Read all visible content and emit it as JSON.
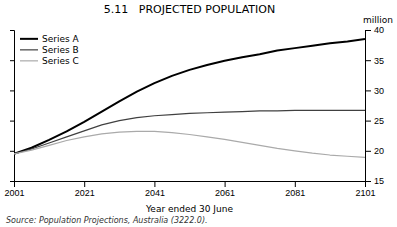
{
  "chart_data": {
    "type": "line",
    "title": "5.11   PROJECTED POPULATION",
    "xlabel": "Year ended 30 June",
    "ylabel": "million",
    "annotations": [
      "Source: Population Projections, Australia (3222.0)."
    ],
    "x": [
      2001,
      2006,
      2011,
      2016,
      2021,
      2026,
      2031,
      2036,
      2041,
      2046,
      2051,
      2056,
      2061,
      2066,
      2071,
      2076,
      2081,
      2086,
      2091,
      2096,
      2101
    ],
    "series": [
      {
        "name": "Series A",
        "color": "#000000",
        "values": [
          19.5,
          20.5,
          21.8,
          23.2,
          24.8,
          26.5,
          28.2,
          29.8,
          31.2,
          32.4,
          33.4,
          34.2,
          34.9,
          35.5,
          36.0,
          36.6,
          37.0,
          37.4,
          37.8,
          38.1,
          38.5
        ]
      },
      {
        "name": "Series B",
        "color": "#404040",
        "values": [
          19.5,
          20.3,
          21.3,
          22.3,
          23.3,
          24.3,
          25.0,
          25.5,
          25.8,
          26.0,
          26.2,
          26.3,
          26.4,
          26.5,
          26.6,
          26.6,
          26.7,
          26.7,
          26.7,
          26.7,
          26.7
        ]
      },
      {
        "name": "Series C",
        "color": "#aaaaaa",
        "values": [
          19.5,
          20.1,
          20.9,
          21.7,
          22.3,
          22.8,
          23.1,
          23.2,
          23.2,
          23.0,
          22.7,
          22.3,
          21.9,
          21.4,
          20.9,
          20.4,
          20.0,
          19.6,
          19.3,
          19.1,
          18.9
        ]
      }
    ],
    "xlim": [
      2001,
      2101
    ],
    "ylim": [
      15,
      40
    ],
    "xticks": [
      2001,
      2021,
      2041,
      2061,
      2081,
      2101
    ],
    "yticks": [
      15,
      20,
      25,
      30,
      35,
      40
    ],
    "grid": false,
    "legend": "upper left"
  }
}
